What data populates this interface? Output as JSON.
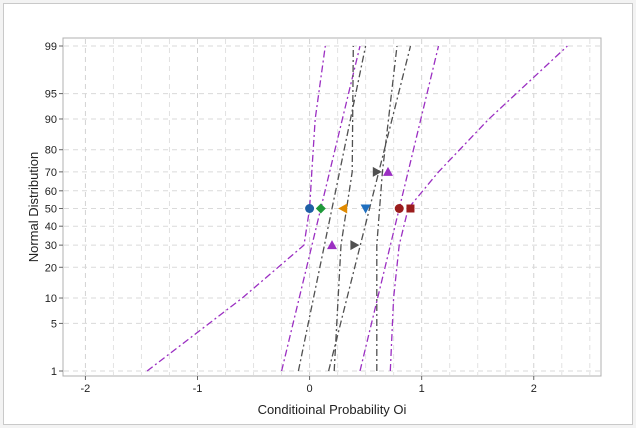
{
  "chart_data": {
    "type": "scatter",
    "title": "",
    "xlabel": "Conditioinal Probability Oi",
    "ylabel": "Normal Distribution",
    "xlim": [
      -2.2,
      2.6
    ],
    "ylim_percent": [
      1,
      99
    ],
    "y_scale": "normal-probability",
    "grid": true,
    "legend": "none",
    "x_ticks": [
      -2,
      -1,
      0,
      1,
      2
    ],
    "x_tick_labels": [
      "-2",
      "-1",
      "0",
      "1",
      "2"
    ],
    "y_ticks": [
      1,
      5,
      10,
      20,
      30,
      40,
      50,
      60,
      70,
      80,
      90,
      95,
      99
    ],
    "y_tick_labels": [
      "1",
      "5",
      "10",
      "20",
      "30",
      "40",
      "50",
      "60",
      "70",
      "80",
      "90",
      "95",
      "99"
    ],
    "points": [
      {
        "x": 0.0,
        "y": 50,
        "marker": "circle",
        "color": "#1f5fa6"
      },
      {
        "x": 0.1,
        "y": 50,
        "marker": "diamond",
        "color": "#1f9a3a"
      },
      {
        "x": 0.3,
        "y": 50,
        "marker": "triangle-left",
        "color": "#e08a00"
      },
      {
        "x": 0.5,
        "y": 50,
        "marker": "triangle-down",
        "color": "#1e6fbf"
      },
      {
        "x": 0.8,
        "y": 50,
        "marker": "circle",
        "color": "#9b1d1d"
      },
      {
        "x": 0.9,
        "y": 50,
        "marker": "square",
        "color": "#9b1d1d"
      },
      {
        "x": 0.2,
        "y": 30,
        "marker": "triangle-up",
        "color": "#9b2fc2"
      },
      {
        "x": 0.7,
        "y": 70,
        "marker": "triangle-up",
        "color": "#9b2fc2"
      },
      {
        "x": 0.4,
        "y": 30,
        "marker": "triangle-right",
        "color": "#505050"
      },
      {
        "x": 0.6,
        "y": 70,
        "marker": "triangle-right",
        "color": "#505050"
      }
    ],
    "fit_lines": [
      {
        "color": "#9b2fc2",
        "points": [
          [
            -0.25,
            1
          ],
          [
            0.45,
            99
          ]
        ]
      },
      {
        "color": "#9b2fc2",
        "points": [
          [
            0.45,
            1
          ],
          [
            1.15,
            99
          ]
        ]
      },
      {
        "color": "#505050",
        "points": [
          [
            -0.1,
            1
          ],
          [
            0.5,
            99
          ]
        ]
      },
      {
        "color": "#505050",
        "points": [
          [
            0.17,
            1
          ],
          [
            0.9,
            99
          ]
        ]
      }
    ],
    "confidence_bands": [
      {
        "color": "#9b2fc2",
        "points": [
          [
            -1.45,
            1
          ],
          [
            -0.6,
            10
          ],
          [
            -0.05,
            30
          ],
          [
            0.0,
            50
          ],
          [
            0.02,
            70
          ],
          [
            0.05,
            90
          ],
          [
            0.14,
            99
          ]
        ]
      },
      {
        "color": "#9b2fc2",
        "points": [
          [
            0.72,
            1
          ],
          [
            0.75,
            10
          ],
          [
            0.8,
            30
          ],
          [
            0.88,
            50
          ],
          [
            1.15,
            70
          ],
          [
            1.6,
            90
          ],
          [
            2.3,
            99
          ]
        ]
      },
      {
        "color": "#505050",
        "points": [
          [
            0.22,
            1
          ],
          [
            0.28,
            30
          ],
          [
            0.38,
            70
          ],
          [
            0.39,
            99
          ]
        ]
      },
      {
        "color": "#505050",
        "points": [
          [
            0.6,
            1
          ],
          [
            0.6,
            30
          ],
          [
            0.65,
            70
          ],
          [
            0.78,
            99
          ]
        ]
      }
    ]
  }
}
